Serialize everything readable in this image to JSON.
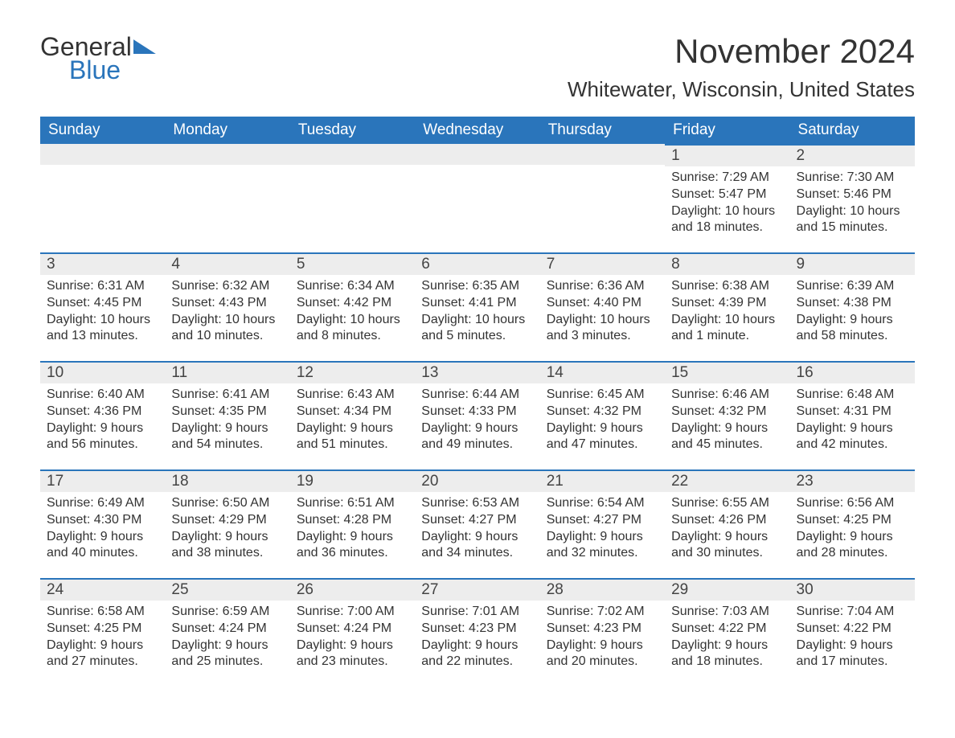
{
  "brand": {
    "word1": "General",
    "word2": "Blue",
    "accent_color": "#2a75bb"
  },
  "title": "November 2024",
  "location": "Whitewater, Wisconsin, United States",
  "day_headers": [
    "Sunday",
    "Monday",
    "Tuesday",
    "Wednesday",
    "Thursday",
    "Friday",
    "Saturday"
  ],
  "colors": {
    "header_bg": "#2a75bb",
    "header_text": "#ffffff",
    "day_head_bg": "#ededed",
    "day_border": "#2a75bb",
    "text": "#333333",
    "background": "#ffffff"
  },
  "weeks": [
    [
      {
        "empty": true
      },
      {
        "empty": true
      },
      {
        "empty": true
      },
      {
        "empty": true
      },
      {
        "empty": true
      },
      {
        "date": "1",
        "sunrise": "Sunrise: 7:29 AM",
        "sunset": "Sunset: 5:47 PM",
        "daylight1": "Daylight: 10 hours",
        "daylight2": "and 18 minutes."
      },
      {
        "date": "2",
        "sunrise": "Sunrise: 7:30 AM",
        "sunset": "Sunset: 5:46 PM",
        "daylight1": "Daylight: 10 hours",
        "daylight2": "and 15 minutes."
      }
    ],
    [
      {
        "date": "3",
        "sunrise": "Sunrise: 6:31 AM",
        "sunset": "Sunset: 4:45 PM",
        "daylight1": "Daylight: 10 hours",
        "daylight2": "and 13 minutes."
      },
      {
        "date": "4",
        "sunrise": "Sunrise: 6:32 AM",
        "sunset": "Sunset: 4:43 PM",
        "daylight1": "Daylight: 10 hours",
        "daylight2": "and 10 minutes."
      },
      {
        "date": "5",
        "sunrise": "Sunrise: 6:34 AM",
        "sunset": "Sunset: 4:42 PM",
        "daylight1": "Daylight: 10 hours",
        "daylight2": "and 8 minutes."
      },
      {
        "date": "6",
        "sunrise": "Sunrise: 6:35 AM",
        "sunset": "Sunset: 4:41 PM",
        "daylight1": "Daylight: 10 hours",
        "daylight2": "and 5 minutes."
      },
      {
        "date": "7",
        "sunrise": "Sunrise: 6:36 AM",
        "sunset": "Sunset: 4:40 PM",
        "daylight1": "Daylight: 10 hours",
        "daylight2": "and 3 minutes."
      },
      {
        "date": "8",
        "sunrise": "Sunrise: 6:38 AM",
        "sunset": "Sunset: 4:39 PM",
        "daylight1": "Daylight: 10 hours",
        "daylight2": "and 1 minute."
      },
      {
        "date": "9",
        "sunrise": "Sunrise: 6:39 AM",
        "sunset": "Sunset: 4:38 PM",
        "daylight1": "Daylight: 9 hours",
        "daylight2": "and 58 minutes."
      }
    ],
    [
      {
        "date": "10",
        "sunrise": "Sunrise: 6:40 AM",
        "sunset": "Sunset: 4:36 PM",
        "daylight1": "Daylight: 9 hours",
        "daylight2": "and 56 minutes."
      },
      {
        "date": "11",
        "sunrise": "Sunrise: 6:41 AM",
        "sunset": "Sunset: 4:35 PM",
        "daylight1": "Daylight: 9 hours",
        "daylight2": "and 54 minutes."
      },
      {
        "date": "12",
        "sunrise": "Sunrise: 6:43 AM",
        "sunset": "Sunset: 4:34 PM",
        "daylight1": "Daylight: 9 hours",
        "daylight2": "and 51 minutes."
      },
      {
        "date": "13",
        "sunrise": "Sunrise: 6:44 AM",
        "sunset": "Sunset: 4:33 PM",
        "daylight1": "Daylight: 9 hours",
        "daylight2": "and 49 minutes."
      },
      {
        "date": "14",
        "sunrise": "Sunrise: 6:45 AM",
        "sunset": "Sunset: 4:32 PM",
        "daylight1": "Daylight: 9 hours",
        "daylight2": "and 47 minutes."
      },
      {
        "date": "15",
        "sunrise": "Sunrise: 6:46 AM",
        "sunset": "Sunset: 4:32 PM",
        "daylight1": "Daylight: 9 hours",
        "daylight2": "and 45 minutes."
      },
      {
        "date": "16",
        "sunrise": "Sunrise: 6:48 AM",
        "sunset": "Sunset: 4:31 PM",
        "daylight1": "Daylight: 9 hours",
        "daylight2": "and 42 minutes."
      }
    ],
    [
      {
        "date": "17",
        "sunrise": "Sunrise: 6:49 AM",
        "sunset": "Sunset: 4:30 PM",
        "daylight1": "Daylight: 9 hours",
        "daylight2": "and 40 minutes."
      },
      {
        "date": "18",
        "sunrise": "Sunrise: 6:50 AM",
        "sunset": "Sunset: 4:29 PM",
        "daylight1": "Daylight: 9 hours",
        "daylight2": "and 38 minutes."
      },
      {
        "date": "19",
        "sunrise": "Sunrise: 6:51 AM",
        "sunset": "Sunset: 4:28 PM",
        "daylight1": "Daylight: 9 hours",
        "daylight2": "and 36 minutes."
      },
      {
        "date": "20",
        "sunrise": "Sunrise: 6:53 AM",
        "sunset": "Sunset: 4:27 PM",
        "daylight1": "Daylight: 9 hours",
        "daylight2": "and 34 minutes."
      },
      {
        "date": "21",
        "sunrise": "Sunrise: 6:54 AM",
        "sunset": "Sunset: 4:27 PM",
        "daylight1": "Daylight: 9 hours",
        "daylight2": "and 32 minutes."
      },
      {
        "date": "22",
        "sunrise": "Sunrise: 6:55 AM",
        "sunset": "Sunset: 4:26 PM",
        "daylight1": "Daylight: 9 hours",
        "daylight2": "and 30 minutes."
      },
      {
        "date": "23",
        "sunrise": "Sunrise: 6:56 AM",
        "sunset": "Sunset: 4:25 PM",
        "daylight1": "Daylight: 9 hours",
        "daylight2": "and 28 minutes."
      }
    ],
    [
      {
        "date": "24",
        "sunrise": "Sunrise: 6:58 AM",
        "sunset": "Sunset: 4:25 PM",
        "daylight1": "Daylight: 9 hours",
        "daylight2": "and 27 minutes."
      },
      {
        "date": "25",
        "sunrise": "Sunrise: 6:59 AM",
        "sunset": "Sunset: 4:24 PM",
        "daylight1": "Daylight: 9 hours",
        "daylight2": "and 25 minutes."
      },
      {
        "date": "26",
        "sunrise": "Sunrise: 7:00 AM",
        "sunset": "Sunset: 4:24 PM",
        "daylight1": "Daylight: 9 hours",
        "daylight2": "and 23 minutes."
      },
      {
        "date": "27",
        "sunrise": "Sunrise: 7:01 AM",
        "sunset": "Sunset: 4:23 PM",
        "daylight1": "Daylight: 9 hours",
        "daylight2": "and 22 minutes."
      },
      {
        "date": "28",
        "sunrise": "Sunrise: 7:02 AM",
        "sunset": "Sunset: 4:23 PM",
        "daylight1": "Daylight: 9 hours",
        "daylight2": "and 20 minutes."
      },
      {
        "date": "29",
        "sunrise": "Sunrise: 7:03 AM",
        "sunset": "Sunset: 4:22 PM",
        "daylight1": "Daylight: 9 hours",
        "daylight2": "and 18 minutes."
      },
      {
        "date": "30",
        "sunrise": "Sunrise: 7:04 AM",
        "sunset": "Sunset: 4:22 PM",
        "daylight1": "Daylight: 9 hours",
        "daylight2": "and 17 minutes."
      }
    ]
  ]
}
